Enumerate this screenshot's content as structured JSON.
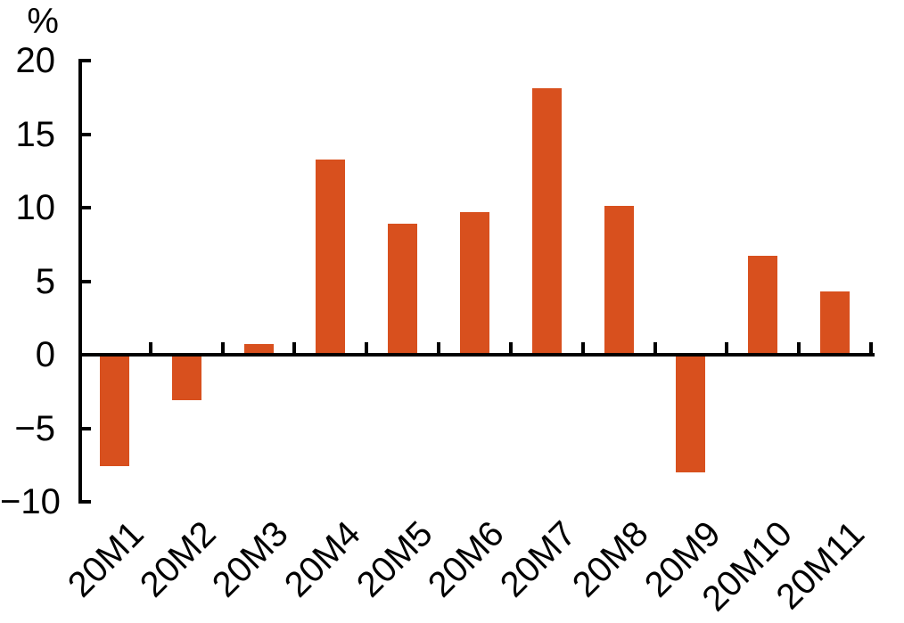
{
  "chart_data": {
    "type": "bar",
    "title": "",
    "unit_label": "%",
    "xlabel": "",
    "ylabel": "%",
    "categories": [
      "20M1",
      "20M2",
      "20M3",
      "20M4",
      "20M5",
      "20M6",
      "20M7",
      "20M8",
      "20M9",
      "20M10",
      "20M11"
    ],
    "values": [
      -7.6,
      -3.1,
      0.7,
      13.3,
      8.9,
      9.7,
      18.1,
      10.1,
      -8.0,
      6.7,
      4.3
    ],
    "ylim": [
      -10,
      20
    ],
    "yticks": [
      20,
      15,
      10,
      5,
      0,
      -5,
      -10
    ],
    "ytick_labels": [
      "20",
      "15",
      "10",
      "5",
      "0",
      "−5",
      "−10"
    ],
    "grid": "off",
    "legend": "none",
    "bar_color": "#D8501E",
    "axis_color": "#000000",
    "background_color": "#FFFFFF"
  }
}
